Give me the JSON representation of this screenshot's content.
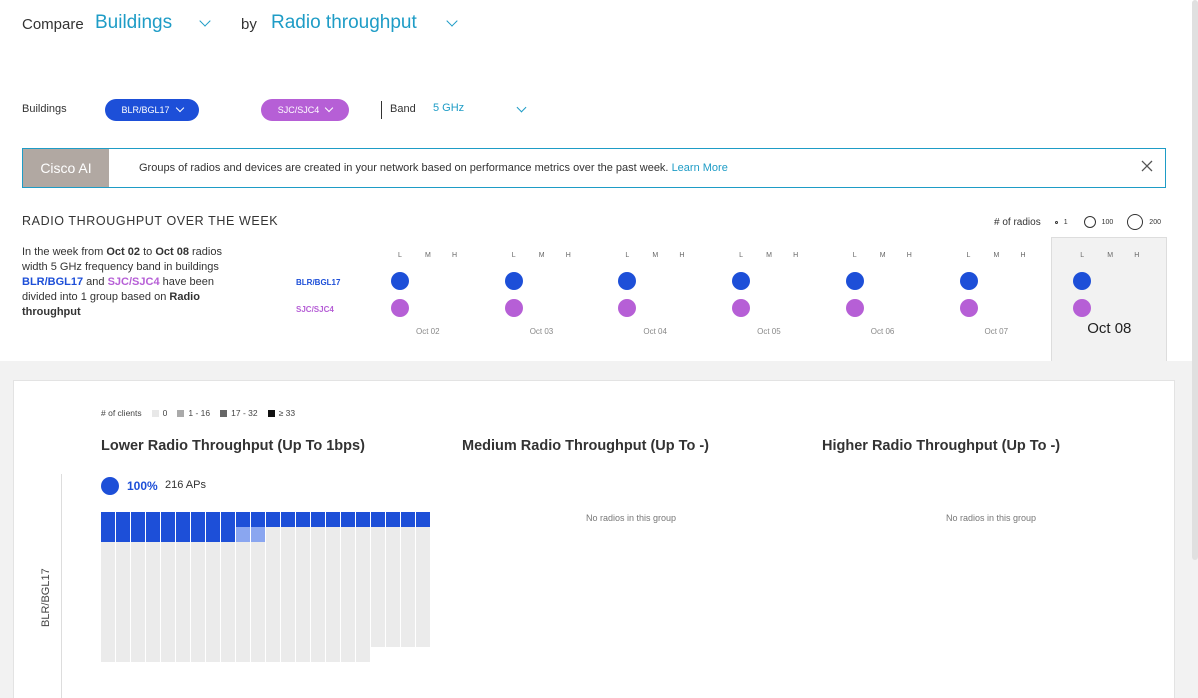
{
  "header": {
    "compare_label": "Compare",
    "compare_value": "Buildings",
    "by_label": "by",
    "by_value": "Radio throughput"
  },
  "filters": {
    "buildings_label": "Buildings",
    "building_1": "BLR/BGL17",
    "building_2": "SJC/SJC4",
    "band_label": "Band",
    "band_value": "5 GHz"
  },
  "banner": {
    "tag": "Cisco AI",
    "text": "Groups of radios and devices are created in your network based on performance metrics over the past week.",
    "link": "Learn More"
  },
  "week": {
    "title": "RADIO THROUGHPUT OVER THE WEEK",
    "legend_label": "# of radios",
    "legend_values": [
      "1",
      "100",
      "200"
    ],
    "desc_parts": {
      "p1": "In the week from ",
      "from": "Oct 02",
      "p2": " to ",
      "to": "Oct 08",
      "p3": " radios width 5 GHz frequency band in buildings ",
      "b1": "BLR/BGL17",
      "p4": " and ",
      "b2": "SJC/SJC4",
      "p5": " have been divided into 1 group based on ",
      "metric": "Radio throughput"
    },
    "row_labels": [
      "BLR/BGL17",
      "SJC/SJC4"
    ],
    "lmh": [
      "L",
      "M",
      "H"
    ],
    "days": [
      "Oct 02",
      "Oct 03",
      "Oct 04",
      "Oct 05",
      "Oct 06",
      "Oct 07",
      "Oct 08"
    ],
    "selected_day": "Oct 08"
  },
  "groups": {
    "clients_legend_label": "# of clients",
    "clients_legend": [
      "0",
      "1 - 16",
      "17 - 32",
      "≥ 33"
    ],
    "titles": [
      "Lower Radio Throughput (Up To 1bps)",
      "Medium Radio Throughput (Up To -)",
      "Higher Radio Throughput (Up To -)"
    ],
    "no_radios": "No radios in this group",
    "y_label": "BLR/BGL17",
    "lower_pct": "100%",
    "lower_aps": "216 APs"
  },
  "colors": {
    "accent": "#1e9cc6",
    "blr": "#1d4fd8",
    "sjc": "#b65fd6",
    "banner_tag": "#b1a8a2"
  }
}
